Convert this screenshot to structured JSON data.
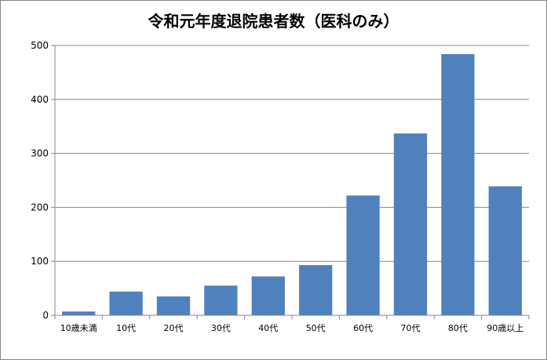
{
  "chart_data": {
    "type": "bar",
    "title": "令和元年度退院患者数（医科のみ）",
    "xlabel": "",
    "ylabel": "",
    "categories": [
      "10歳未満",
      "10代",
      "20代",
      "30代",
      "40代",
      "50代",
      "60代",
      "70代",
      "80代",
      "90歳以上"
    ],
    "values": [
      7,
      44,
      35,
      55,
      72,
      93,
      222,
      337,
      484,
      239
    ],
    "ylim": [
      0,
      500
    ],
    "yticks": [
      0,
      100,
      200,
      300,
      400,
      500
    ],
    "grid": true,
    "legend": "none",
    "bar_color": "#4f81bd"
  }
}
